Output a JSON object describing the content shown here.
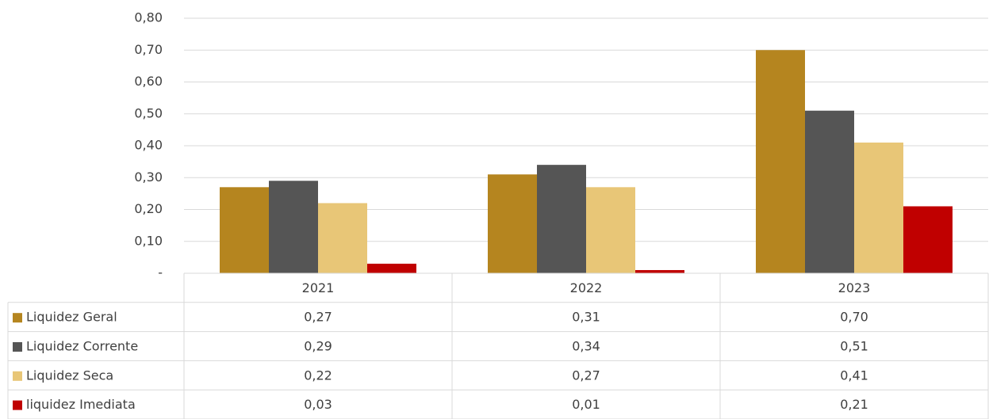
{
  "chart_data": {
    "type": "bar",
    "categories": [
      "2021",
      "2022",
      "2023"
    ],
    "series": [
      {
        "name": "Liquidez Geral",
        "color": "#b5851f",
        "values": [
          0.27,
          0.31,
          0.7
        ],
        "value_labels": [
          "0,27",
          "0,31",
          "0,70"
        ]
      },
      {
        "name": "Liquidez Corrente",
        "color": "#555555",
        "values": [
          0.29,
          0.34,
          0.51
        ],
        "value_labels": [
          "0,29",
          "0,34",
          "0,51"
        ]
      },
      {
        "name": "Liquidez Seca",
        "color": "#e8c677",
        "values": [
          0.22,
          0.27,
          0.41
        ],
        "value_labels": [
          "0,22",
          "0,27",
          "0,41"
        ]
      },
      {
        "name": "liquidez Imediata",
        "color": "#c00000",
        "values": [
          0.03,
          0.01,
          0.21
        ],
        "value_labels": [
          "0,03",
          "0,01",
          "0,21"
        ]
      }
    ],
    "ylim": [
      0,
      0.8
    ],
    "yticks": [
      {
        "value": 0,
        "label": "-"
      },
      {
        "value": 0.1,
        "label": "0,10"
      },
      {
        "value": 0.2,
        "label": "0,20"
      },
      {
        "value": 0.3,
        "label": "0,30"
      },
      {
        "value": 0.4,
        "label": "0,40"
      },
      {
        "value": 0.5,
        "label": "0,50"
      },
      {
        "value": 0.6,
        "label": "0,60"
      },
      {
        "value": 0.7,
        "label": "0,70"
      },
      {
        "value": 0.8,
        "label": "0,80"
      }
    ],
    "grid": true
  }
}
